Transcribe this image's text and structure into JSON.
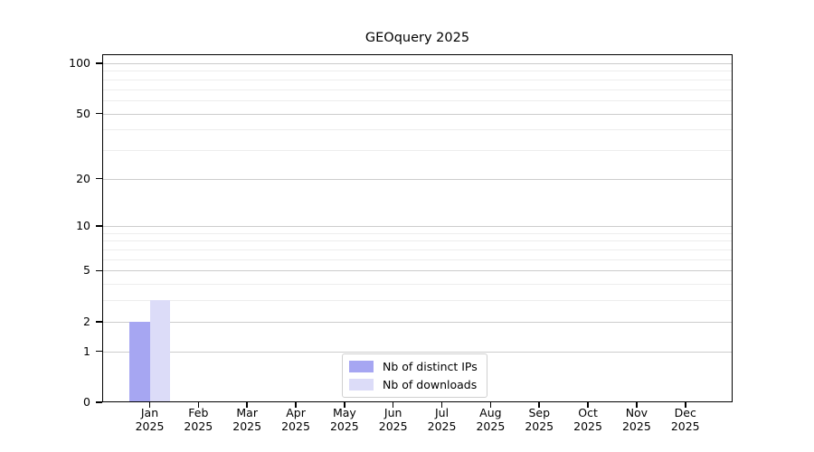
{
  "chart_data": {
    "type": "bar",
    "title": "GEOquery 2025",
    "xlabel": "",
    "ylabel": "",
    "year": "2025",
    "months": [
      "Jan",
      "Feb",
      "Mar",
      "Apr",
      "May",
      "Jun",
      "Jul",
      "Aug",
      "Sep",
      "Oct",
      "Nov",
      "Dec"
    ],
    "categories": [
      "Jan 2025",
      "Feb 2025",
      "Mar 2025",
      "Apr 2025",
      "May 2025",
      "Jun 2025",
      "Jul 2025",
      "Aug 2025",
      "Sep 2025",
      "Oct 2025",
      "Nov 2025",
      "Dec 2025"
    ],
    "series": [
      {
        "name": "Nb of distinct IPs",
        "color": "#a6a6f2",
        "values": [
          2,
          0,
          0,
          0,
          0,
          0,
          0,
          0,
          0,
          0,
          0,
          0
        ]
      },
      {
        "name": "Nb of downloads",
        "color": "#dcdcf8",
        "values": [
          3,
          0,
          0,
          0,
          0,
          0,
          0,
          0,
          0,
          0,
          0,
          0
        ]
      }
    ],
    "yscale": "log1p",
    "ylim": [
      0,
      113
    ],
    "y_major_ticks": [
      0,
      1,
      2,
      5,
      10,
      20,
      50,
      100
    ],
    "y_minor_gridlines": [
      3,
      4,
      6,
      7,
      8,
      9,
      30,
      40,
      60,
      70,
      80,
      90
    ],
    "grid": "horizontal, major and minor",
    "legend_position": "lower center, inside axes",
    "colors": {
      "background": "#ffffff",
      "axis": "#000000",
      "text": "#000000",
      "major_grid": "#cccccc",
      "minor_grid": "#ededed",
      "legend_border": "#d0d0d0"
    }
  }
}
